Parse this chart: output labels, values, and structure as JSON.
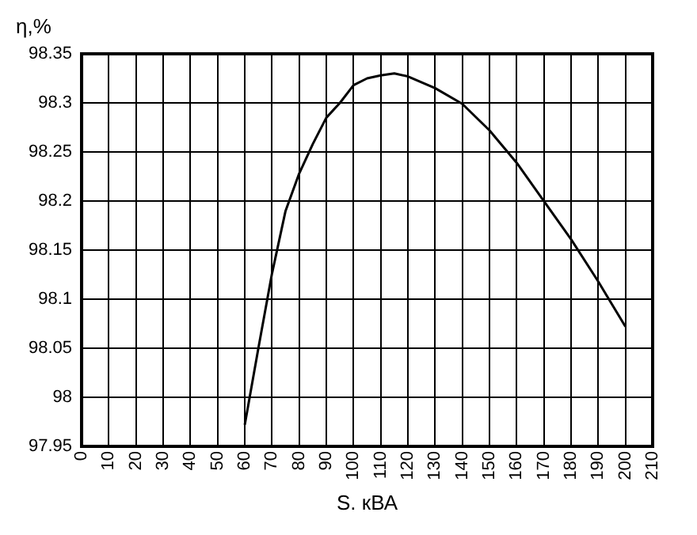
{
  "chart_data": {
    "type": "line",
    "xlabel": "S. кВА",
    "ylabel": "η,%",
    "x": [
      60,
      65,
      70,
      75,
      80,
      85,
      90,
      95,
      100,
      105,
      110,
      115,
      120,
      130,
      140,
      150,
      160,
      170,
      180,
      190,
      200
    ],
    "series": [
      {
        "color": "#000000",
        "values": [
          97.972,
          98.05,
          98.126,
          98.19,
          98.228,
          98.258,
          98.285,
          98.3,
          98.318,
          98.325,
          98.328,
          98.33,
          98.327,
          98.315,
          98.299,
          98.272,
          98.239,
          98.2,
          98.161,
          98.118,
          98.072
        ]
      }
    ],
    "xlim": [
      0,
      210
    ],
    "xticks": [
      0,
      10,
      20,
      30,
      40,
      50,
      60,
      70,
      80,
      90,
      100,
      110,
      120,
      130,
      140,
      150,
      160,
      170,
      180,
      190,
      200,
      210
    ],
    "ylim": [
      97.95,
      98.35
    ],
    "yticks": [
      97.95,
      98,
      98.05,
      98.1,
      98.15,
      98.2,
      98.25,
      98.3,
      98.35
    ],
    "grid": true,
    "legend": false,
    "marker": "none",
    "line_style": "solid"
  }
}
